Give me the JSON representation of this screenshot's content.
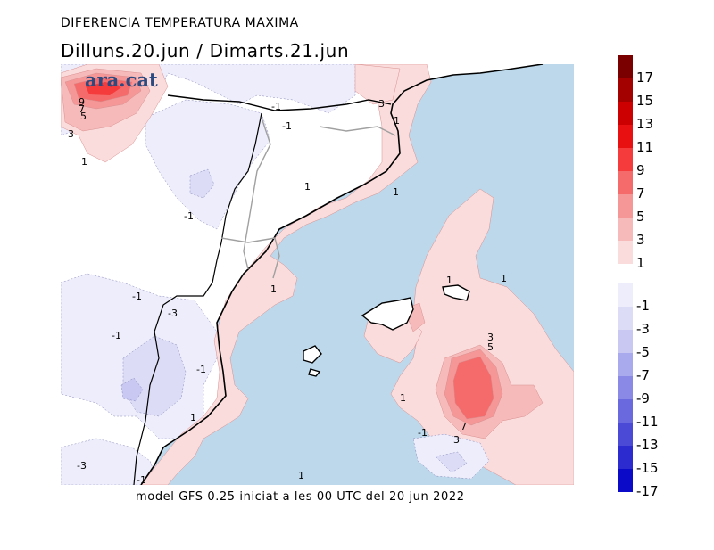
{
  "title": "DIFERENCIA TEMPERATURA MAXIMA",
  "subtitle": "Dilluns.20.jun / Dimarts.21.jun",
  "footer": "model GFS 0.25 iniciat a les 00 UTC del 20 jun 2022",
  "logo": "ara.cat",
  "legend": {
    "positive": [
      {
        "label": "17",
        "color": "#7a0000"
      },
      {
        "label": "15",
        "color": "#a30000"
      },
      {
        "label": "13",
        "color": "#cc0000"
      },
      {
        "label": "11",
        "color": "#e81010"
      },
      {
        "label": "9",
        "color": "#f53b3b"
      },
      {
        "label": "7",
        "color": "#f56b6b"
      },
      {
        "label": "5",
        "color": "#f59797"
      },
      {
        "label": "3",
        "color": "#f7baba"
      },
      {
        "label": "1",
        "color": "#fbdcdc"
      }
    ],
    "negative": [
      {
        "label": "-1",
        "color": "#ededfb"
      },
      {
        "label": "-3",
        "color": "#dcdcf6"
      },
      {
        "label": "-5",
        "color": "#c8c8f2"
      },
      {
        "label": "-7",
        "color": "#a9a9ed"
      },
      {
        "label": "-9",
        "color": "#8a8ae6"
      },
      {
        "label": "-11",
        "color": "#6a6ade"
      },
      {
        "label": "-13",
        "color": "#4a4ad6"
      },
      {
        "label": "-15",
        "color": "#2b2bd0"
      },
      {
        "label": "-17",
        "color": "#0a0ac8"
      }
    ]
  },
  "colors": {
    "sea": "#bcd8ea",
    "land": "#ffffff",
    "coast": "#000000",
    "borders": "#a0a0a0"
  },
  "contour_labels": [
    "9",
    "7",
    "5",
    "3",
    "1",
    "-1",
    "-1",
    "-1",
    "3",
    "1",
    "1",
    "1",
    "-1",
    "-3",
    "-1",
    "-1",
    "1",
    "1",
    "1",
    "1",
    "3",
    "5",
    "7",
    "3",
    "1",
    "-1",
    "-3",
    "-1"
  ]
}
